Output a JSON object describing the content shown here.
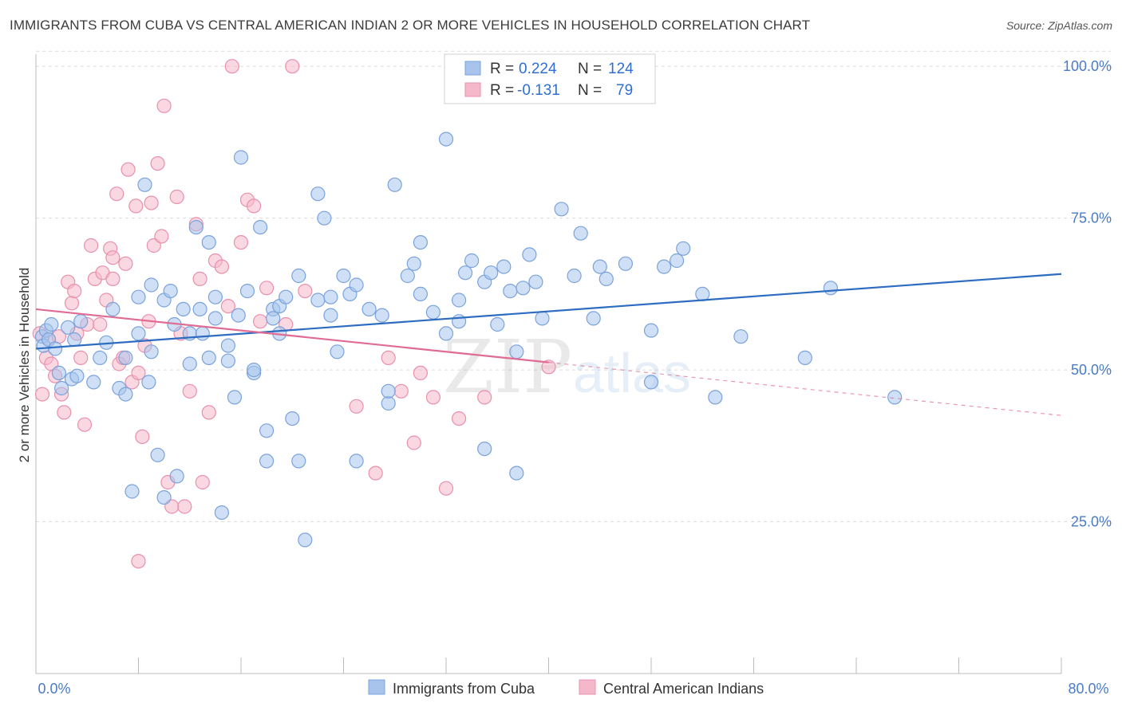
{
  "header": {
    "title": "IMMIGRANTS FROM CUBA VS CENTRAL AMERICAN INDIAN 2 OR MORE VEHICLES IN HOUSEHOLD CORRELATION CHART",
    "source": "Source: ZipAtlas.com"
  },
  "legend_box": {
    "rows": [
      {
        "r_label": "R =",
        "r_value": "0.224",
        "n_label": "N =",
        "n_value": "124",
        "color": "#a8c4ec"
      },
      {
        "r_label": "R =",
        "r_value": "-0.131",
        "n_label": "N =",
        "n_value": "79",
        "color": "#f5b8cb"
      }
    ]
  },
  "watermark": {
    "zip": "ZIP",
    "atlas": "atlas"
  },
  "bottom_legend": [
    {
      "label": "Immigrants from Cuba",
      "color": "#a8c4ec"
    },
    {
      "label": "Central American Indians",
      "color": "#f5b8cb"
    }
  ],
  "colors": {
    "blue_point": "#a8c4ec",
    "blue_stroke": "#7aa3dc",
    "blue_line": "#2d6cc0",
    "pink_point": "#f5b8cb",
    "pink_stroke": "#e890ad",
    "pink_line": "#e06b93",
    "tick_text": "#4a7bc8",
    "grid": "#dcdcdc"
  },
  "chart_data": {
    "type": "scatter",
    "title": "IMMIGRANTS FROM CUBA VS CENTRAL AMERICAN INDIAN 2 OR MORE VEHICLES IN HOUSEHOLD CORRELATION CHART",
    "xlabel": "",
    "ylabel": "2 or more Vehicles in Household",
    "xlim": [
      0,
      80
    ],
    "ylim": [
      0,
      102
    ],
    "x_tick_labels": [
      "0.0%",
      "80.0%"
    ],
    "y_tick_values": [
      25,
      50,
      75,
      100
    ],
    "y_tick_labels": [
      "25.0%",
      "50.0%",
      "75.0%",
      "100.0%"
    ],
    "grid": true,
    "legend_position": "top-center",
    "series": [
      {
        "name": "Immigrants from Cuba",
        "color": "#a8c4ec",
        "trend": {
          "x": [
            0,
            80
          ],
          "y": [
            53.5,
            65.8
          ],
          "dashed_from": null
        },
        "points": [
          [
            0.5,
            55.5
          ],
          [
            0.6,
            54
          ],
          [
            0.8,
            56.5
          ],
          [
            1,
            55
          ],
          [
            1.2,
            57.5
          ],
          [
            1.5,
            53.5
          ],
          [
            1.8,
            49.5
          ],
          [
            2,
            47
          ],
          [
            2.5,
            57
          ],
          [
            2.8,
            48.5
          ],
          [
            3,
            55
          ],
          [
            3.2,
            49
          ],
          [
            3.5,
            58
          ],
          [
            4.5,
            48
          ],
          [
            5,
            52
          ],
          [
            5.5,
            54.5
          ],
          [
            6,
            60
          ],
          [
            6.5,
            47
          ],
          [
            7,
            52
          ],
          [
            7,
            46
          ],
          [
            7.5,
            30
          ],
          [
            8,
            56
          ],
          [
            8,
            62
          ],
          [
            8.5,
            80.5
          ],
          [
            8.8,
            48
          ],
          [
            9,
            53
          ],
          [
            9,
            64
          ],
          [
            9.5,
            36
          ],
          [
            10,
            61.5
          ],
          [
            10,
            29
          ],
          [
            10.5,
            63
          ],
          [
            10.8,
            57.5
          ],
          [
            11,
            32.5
          ],
          [
            11.5,
            60
          ],
          [
            12,
            56
          ],
          [
            12,
            51
          ],
          [
            12.5,
            73.5
          ],
          [
            12.8,
            60
          ],
          [
            13,
            56
          ],
          [
            13.5,
            52
          ],
          [
            13.5,
            71
          ],
          [
            14,
            62
          ],
          [
            14,
            58.5
          ],
          [
            14.5,
            26.5
          ],
          [
            15,
            51.5
          ],
          [
            15,
            54
          ],
          [
            15.5,
            45.5
          ],
          [
            15.8,
            59
          ],
          [
            16,
            85
          ],
          [
            16.5,
            63
          ],
          [
            17,
            49.5
          ],
          [
            17,
            50
          ],
          [
            17.5,
            73.5
          ],
          [
            18,
            40
          ],
          [
            18,
            35
          ],
          [
            18.5,
            60
          ],
          [
            18.5,
            58.5
          ],
          [
            19,
            56
          ],
          [
            19,
            60.5
          ],
          [
            19.5,
            62
          ],
          [
            20,
            42
          ],
          [
            20.5,
            35
          ],
          [
            20.5,
            65.5
          ],
          [
            21,
            22
          ],
          [
            22,
            61.5
          ],
          [
            22,
            79
          ],
          [
            22.5,
            75
          ],
          [
            23,
            59
          ],
          [
            23,
            62
          ],
          [
            23.5,
            53
          ],
          [
            24,
            65.5
          ],
          [
            24.5,
            62.5
          ],
          [
            25,
            64
          ],
          [
            25,
            35
          ],
          [
            26,
            60
          ],
          [
            27,
            59
          ],
          [
            27.5,
            44.5
          ],
          [
            27.5,
            46.5
          ],
          [
            28,
            80.5
          ],
          [
            29,
            65.5
          ],
          [
            29.5,
            67.5
          ],
          [
            30,
            71
          ],
          [
            30,
            62.5
          ],
          [
            31,
            59.5
          ],
          [
            32,
            88
          ],
          [
            32,
            56
          ],
          [
            33,
            58
          ],
          [
            33,
            61.5
          ],
          [
            33.5,
            66
          ],
          [
            34,
            68
          ],
          [
            35,
            64.5
          ],
          [
            35,
            37
          ],
          [
            35.5,
            66
          ],
          [
            36,
            57.5
          ],
          [
            36.5,
            67
          ],
          [
            37,
            63
          ],
          [
            37.5,
            53
          ],
          [
            37.5,
            33
          ],
          [
            38,
            63.5
          ],
          [
            38.5,
            69
          ],
          [
            39,
            64.5
          ],
          [
            39.5,
            58.5
          ],
          [
            41,
            76.5
          ],
          [
            42,
            65.5
          ],
          [
            42.5,
            72.5
          ],
          [
            43.5,
            58.5
          ],
          [
            44,
            67
          ],
          [
            44.5,
            65
          ],
          [
            46,
            67.5
          ],
          [
            48,
            56.5
          ],
          [
            48,
            48
          ],
          [
            49,
            67
          ],
          [
            50,
            68
          ],
          [
            50.5,
            70
          ],
          [
            52,
            62.5
          ],
          [
            53,
            45.5
          ],
          [
            55,
            55.5
          ],
          [
            60,
            52
          ],
          [
            62,
            63.5
          ],
          [
            67,
            45.5
          ]
        ]
      },
      {
        "name": "Central American Indians",
        "color": "#f5b8cb",
        "trend": {
          "x": [
            0,
            80
          ],
          "y": [
            60,
            42.5
          ],
          "dashed_from": 40
        },
        "points": [
          [
            0.3,
            56
          ],
          [
            0.5,
            46
          ],
          [
            0.8,
            52
          ],
          [
            1,
            55
          ],
          [
            1.2,
            51
          ],
          [
            1.5,
            49
          ],
          [
            1.8,
            55.5
          ],
          [
            2,
            46
          ],
          [
            2.2,
            43
          ],
          [
            2.5,
            64.5
          ],
          [
            2.8,
            61
          ],
          [
            3,
            63
          ],
          [
            3.2,
            56
          ],
          [
            3.5,
            52
          ],
          [
            3.8,
            41
          ],
          [
            4,
            57.5
          ],
          [
            4.3,
            70.5
          ],
          [
            4.6,
            65
          ],
          [
            5,
            57.5
          ],
          [
            5.2,
            66
          ],
          [
            5.5,
            61.5
          ],
          [
            5.8,
            70
          ],
          [
            6,
            68.5
          ],
          [
            6,
            65
          ],
          [
            6.3,
            79
          ],
          [
            6.5,
            51
          ],
          [
            6.8,
            52
          ],
          [
            7,
            67.5
          ],
          [
            7.2,
            83
          ],
          [
            7.5,
            48
          ],
          [
            7.8,
            77
          ],
          [
            8,
            49.5
          ],
          [
            8.3,
            39
          ],
          [
            8.5,
            54
          ],
          [
            8.8,
            58
          ],
          [
            9,
            77.5
          ],
          [
            9.2,
            70.5
          ],
          [
            9.5,
            84
          ],
          [
            9.8,
            72
          ],
          [
            10,
            93.5
          ],
          [
            10.3,
            31.5
          ],
          [
            10.6,
            27.5
          ],
          [
            11,
            78.5
          ],
          [
            11.3,
            56
          ],
          [
            11.6,
            27.5
          ],
          [
            12,
            46.5
          ],
          [
            12.5,
            74
          ],
          [
            12.8,
            65
          ],
          [
            13,
            31.5
          ],
          [
            13.5,
            43
          ],
          [
            14,
            68
          ],
          [
            14.5,
            67
          ],
          [
            15,
            60.5
          ],
          [
            15.3,
            100
          ],
          [
            16,
            71
          ],
          [
            16.5,
            78
          ],
          [
            17,
            77
          ],
          [
            17.5,
            58
          ],
          [
            18,
            63.5
          ],
          [
            19.5,
            57.5
          ],
          [
            20,
            100
          ],
          [
            21,
            63
          ],
          [
            25,
            44
          ],
          [
            26.5,
            33
          ],
          [
            27.5,
            52
          ],
          [
            28.5,
            46.5
          ],
          [
            29.5,
            38
          ],
          [
            30,
            49.5
          ],
          [
            31,
            45.5
          ],
          [
            32,
            30.5
          ],
          [
            33,
            42
          ],
          [
            35,
            45.5
          ],
          [
            40,
            50.5
          ],
          [
            8,
            18.5
          ]
        ]
      }
    ]
  }
}
